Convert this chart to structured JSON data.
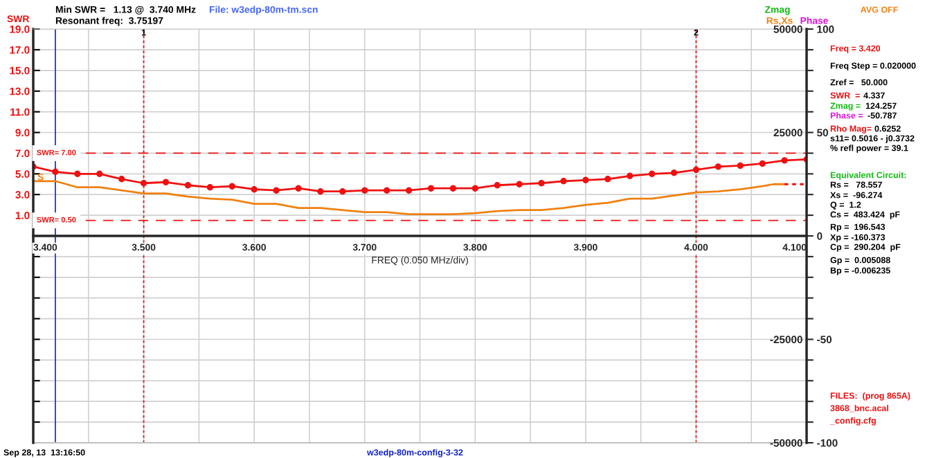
{
  "chart_data": {
    "type": "line",
    "ylabel": "SWR",
    "xlabel": "FREQ (0.050 MHz/div)",
    "xlim": [
      3.4,
      4.1
    ],
    "xticks": [
      {
        "value": 3.4,
        "label": "3.400"
      },
      {
        "value": 3.45,
        "label": null
      },
      {
        "value": 3.5,
        "label": "3.500"
      },
      {
        "value": 3.55,
        "label": null
      },
      {
        "value": 3.6,
        "label": "3.600"
      },
      {
        "value": 3.65,
        "label": null
      },
      {
        "value": 3.7,
        "label": "3.700"
      },
      {
        "value": 3.75,
        "label": null
      },
      {
        "value": 3.8,
        "label": "3.800"
      },
      {
        "value": 3.85,
        "label": null
      },
      {
        "value": 3.9,
        "label": "3.900"
      },
      {
        "value": 3.95,
        "label": null
      },
      {
        "value": 4.0,
        "label": "4.000"
      },
      {
        "value": 4.05,
        "label": null
      },
      {
        "value": 4.1,
        "label": "4.100"
      }
    ],
    "ylim": [
      -21,
      19
    ],
    "yticks": [
      {
        "value": -19,
        "label": null
      },
      {
        "value": -17,
        "label": null
      },
      {
        "value": -15,
        "label": null
      },
      {
        "value": -13,
        "label": null
      },
      {
        "value": -11,
        "label": null
      },
      {
        "value": -9,
        "label": null
      },
      {
        "value": -7,
        "label": null
      },
      {
        "value": -5,
        "label": null
      },
      {
        "value": -3,
        "label": null
      },
      {
        "value": -1,
        "label": null
      },
      {
        "value": 1,
        "label": "1.0"
      },
      {
        "value": 3,
        "label": "3.0"
      },
      {
        "value": 5,
        "label": "5.0"
      },
      {
        "value": 7,
        "label": "7.0"
      },
      {
        "value": 9,
        "label": "9.0"
      },
      {
        "value": 11,
        "label": "11.0"
      },
      {
        "value": 13,
        "label": "13.0"
      },
      {
        "value": 15,
        "label": "15.0"
      },
      {
        "value": 17,
        "label": "17.0"
      },
      {
        "value": 19,
        "label": "19.0"
      }
    ],
    "y2lim": [
      -100,
      100
    ],
    "y2ticks": [
      -100,
      {
        "value": -90,
        "label": null
      },
      {
        "value": -80,
        "label": null
      },
      {
        "value": -70,
        "label": null
      },
      {
        "value": -60,
        "label": null
      },
      -50,
      {
        "value": -40,
        "label": null
      },
      {
        "value": -30,
        "label": null
      },
      {
        "value": -20,
        "label": null
      },
      {
        "value": -10,
        "label": null
      },
      0,
      {
        "value": 10,
        "label": null
      },
      {
        "value": 20,
        "label": null
      },
      {
        "value": 30,
        "label": null
      },
      {
        "value": 40,
        "label": null
      },
      50,
      {
        "value": 60,
        "label": null
      },
      {
        "value": 70,
        "label": null
      },
      {
        "value": 80,
        "label": null
      },
      {
        "value": 90,
        "label": null
      },
      100
    ],
    "y3lim": [
      -50000,
      50000
    ],
    "y3ticks": [
      -50000,
      -25000,
      25000,
      50000
    ],
    "grid": true,
    "series": [
      {
        "color": "#ee1111",
        "marker": "circle",
        "line_style": "solid",
        "x": [
          3.4,
          3.42,
          3.44,
          3.46,
          3.48,
          3.5,
          3.52,
          3.54,
          3.56,
          3.58,
          3.6,
          3.62,
          3.64,
          3.66,
          3.68,
          3.7,
          3.72,
          3.74,
          3.76,
          3.78,
          3.8,
          3.82,
          3.84,
          3.86,
          3.88,
          3.9,
          3.92,
          3.94,
          3.96,
          3.98,
          4.0,
          4.02,
          4.04,
          4.06,
          4.08,
          4.1
        ],
        "values": [
          5.7,
          5.2,
          5.0,
          5.0,
          4.5,
          4.1,
          4.2,
          3.9,
          3.7,
          3.8,
          3.5,
          3.4,
          3.6,
          3.3,
          3.3,
          3.4,
          3.4,
          3.4,
          3.6,
          3.6,
          3.6,
          3.9,
          4.0,
          4.1,
          4.3,
          4.4,
          4.5,
          4.8,
          5.0,
          5.1,
          5.4,
          5.7,
          5.8,
          6.0,
          6.3,
          6.4
        ]
      },
      {
        "color": "#f08010",
        "marker": "none",
        "line_style": "solid",
        "x": [
          3.4,
          3.42,
          3.44,
          3.46,
          3.48,
          3.5,
          3.52,
          3.54,
          3.56,
          3.58,
          3.6,
          3.62,
          3.64,
          3.66,
          3.68,
          3.7,
          3.72,
          3.74,
          3.76,
          3.78,
          3.8,
          3.82,
          3.84,
          3.86,
          3.88,
          3.9,
          3.92,
          3.94,
          3.96,
          3.98,
          4.0,
          4.02,
          4.04,
          4.06,
          4.07,
          4.08
        ],
        "values": [
          4.3,
          4.3,
          3.7,
          3.7,
          3.4,
          3.1,
          3.1,
          2.8,
          2.6,
          2.5,
          2.1,
          2.1,
          1.7,
          1.7,
          1.5,
          1.3,
          1.3,
          1.1,
          1.1,
          1.1,
          1.2,
          1.4,
          1.5,
          1.5,
          1.7,
          2.0,
          2.2,
          2.6,
          2.6,
          2.9,
          3.2,
          3.3,
          3.5,
          3.8,
          4.0,
          4.0
        ]
      },
      {
        "color": "#ee1111",
        "marker": "none",
        "line_style": "dotted",
        "x": [
          4.08,
          4.1
        ],
        "values": [
          4.0,
          4.0
        ]
      }
    ],
    "ref_lines": [
      {
        "axis": "y",
        "value": 7.0,
        "label": "SWR= 7.00",
        "color": "#ee1111",
        "line_style": "dashed"
      },
      {
        "axis": "y",
        "value": 0.5,
        "label": "SWR= 0.50",
        "color": "#ee1111",
        "line_style": "dashed"
      },
      {
        "axis": "x",
        "value": 3.42,
        "color": "#2233dd",
        "line_style": "solid"
      },
      {
        "axis": "x",
        "value": 3.5,
        "color": "#ee1111",
        "line_style": "dotted"
      },
      {
        "axis": "x",
        "value": 4.0,
        "color": "#ee1111",
        "line_style": "dotted"
      }
    ],
    "annotations": [
      "Min SWR =   1.13 @  3.740 MHz",
      "File: w3edp-80m-tm.scn",
      "Resonant freq:  3.75197",
      "Zmag",
      "AVG OFF",
      "Rs,Xs",
      "Phase",
      "Freq = 3.420",
      "Freq Step = 0.020000",
      "Zref =   50.000",
      "SWR  =",
      "4.337",
      "Zmag =",
      "124.257",
      "Phase =",
      "-50.787",
      "Rho Mag=",
      "0.6252",
      "s11= 0.5016 - j0.3732",
      "% refl power = 39.1",
      "Equivalent Circuit:",
      "Rs =   78.557",
      "Xs =  -96.274",
      "Q =  1.2",
      "Cs =  483.424  pF",
      "Rp =  196.543",
      "Xp = -160.373",
      "Cp =  290.204  pF",
      "Gp =  0.005088",
      "Bp = -0.006235",
      "FILES:  (prog 865A)",
      "3868_bnc.acal",
      "_config.cfg",
      "Sep 28, 13  13:16:50",
      "w3edp-80m-config-3-32",
      "S",
      {
        "text": "1",
        "x": 3.5,
        "y": 18.6
      },
      {
        "text": "2",
        "x": 4.0,
        "y": 18.6
      }
    ]
  }
}
